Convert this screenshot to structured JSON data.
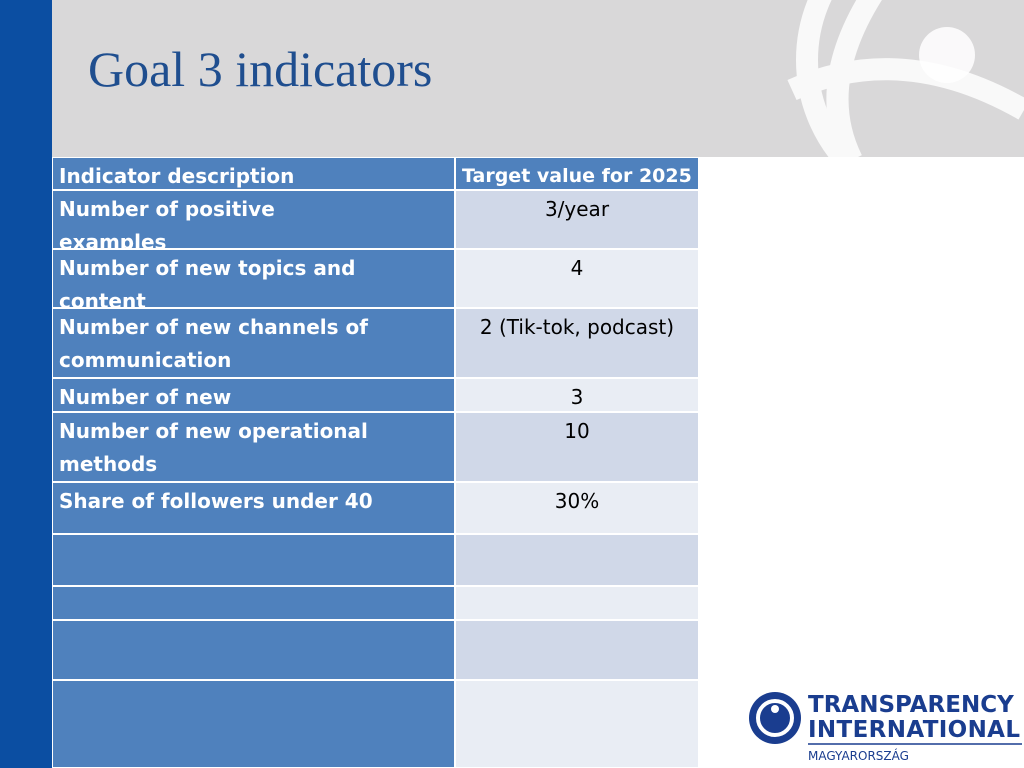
{
  "header": {
    "title": "Goal 3 indicators"
  },
  "table": {
    "columns": [
      "Indicator description",
      "Target value for 2025"
    ],
    "rows": [
      [
        "Number of positive examples",
        "3/year"
      ],
      [
        "Number of new topics and content",
        "4"
      ],
      [
        "Number of new channels of communication",
        "2 (Tik-tok, podcast)"
      ],
      [
        "Number of new partnerships",
        "3"
      ],
      [
        "Number of new operational methods",
        "10"
      ],
      [
        "Share of followers under 40",
        "30%"
      ]
    ]
  },
  "logo": {
    "line1": "TRANSPARENCY",
    "line2": "INTERNATIONAL",
    "line3": "MAGYARORSZÁG"
  }
}
